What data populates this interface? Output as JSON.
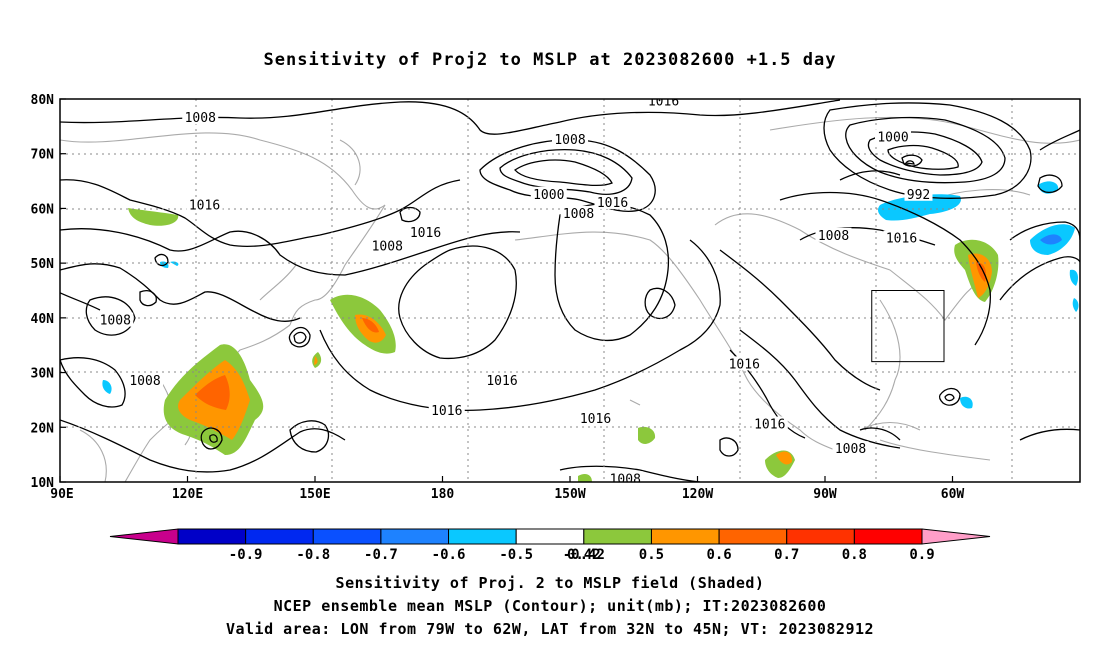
{
  "title": "Sensitivity of Proj2 to MSLP at 2023082600 +1.5 day",
  "map": {
    "lat_labels": [
      "80N",
      "70N",
      "60N",
      "50N",
      "40N",
      "30N",
      "20N",
      "10N"
    ],
    "lon_labels": [
      "90E",
      "120E",
      "150E",
      "180",
      "150W",
      "120W",
      "90W",
      "60W"
    ],
    "contour_labels": [
      {
        "text": "1008",
        "lon": 123,
        "lat": 76.5
      },
      {
        "text": "1016",
        "lon": 232,
        "lat": 79.5
      },
      {
        "text": "1008",
        "lon": 210,
        "lat": 72.5
      },
      {
        "text": "1000",
        "lon": 286,
        "lat": 73
      },
      {
        "text": "992",
        "lon": 292,
        "lat": 62.5
      },
      {
        "text": "1000",
        "lon": 205,
        "lat": 62.5
      },
      {
        "text": "1008",
        "lon": 212,
        "lat": 59
      },
      {
        "text": "1016",
        "lon": 220,
        "lat": 61
      },
      {
        "text": "1016",
        "lon": 124,
        "lat": 60.5
      },
      {
        "text": "1016",
        "lon": 176,
        "lat": 55.5
      },
      {
        "text": "1008",
        "lon": 167,
        "lat": 53
      },
      {
        "text": "1008",
        "lon": 272,
        "lat": 55
      },
      {
        "text": "1016",
        "lon": 288,
        "lat": 54.5
      },
      {
        "text": "1008",
        "lon": 103,
        "lat": 39.5
      },
      {
        "text": "1008",
        "lon": 110,
        "lat": 28.5
      },
      {
        "text": "1016",
        "lon": 194,
        "lat": 28.5
      },
      {
        "text": "1016",
        "lon": 181,
        "lat": 23
      },
      {
        "text": "1016",
        "lon": 216,
        "lat": 21.5
      },
      {
        "text": "1016",
        "lon": 251,
        "lat": 31.5
      },
      {
        "text": "1016",
        "lon": 257,
        "lat": 20.5
      },
      {
        "text": "1008",
        "lon": 276,
        "lat": 16
      },
      {
        "text": "1008",
        "lon": 223,
        "lat": 10.5
      }
    ],
    "valid_box": {
      "lon_w": 79,
      "lon_e": 62,
      "lat_s": 32,
      "lat_n": 45
    }
  },
  "legend": {
    "colors": [
      "#c8008c",
      "#0000c8",
      "#0028f0",
      "#0a50ff",
      "#1e82ff",
      "#0ac8ff",
      "#ffffff",
      "#8cc83c",
      "#ff9600",
      "#ff6400",
      "#ff3200",
      "#ff0000",
      "#ff9ec8"
    ],
    "labels": [
      "-0.9",
      "-0.8",
      "-0.7",
      "-0.6",
      "-0.5",
      "-0.42",
      "0.42",
      "0.5",
      "0.6",
      "0.7",
      "0.8",
      "0.9"
    ]
  },
  "captions": {
    "line1": "Sensitivity of Proj. 2 to MSLP field (Shaded)",
    "line2": "NCEP ensemble mean MSLP (Contour); unit(mb); IT:2023082600",
    "line3": "Valid area: LON from 79W to 62W, LAT from 32N to 45N; VT: 2023082912"
  }
}
